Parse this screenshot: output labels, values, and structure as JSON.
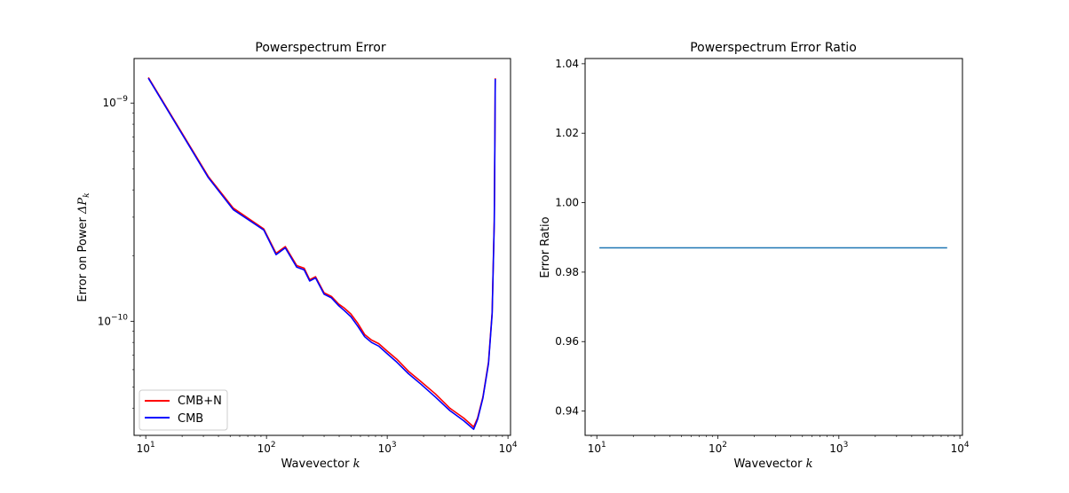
{
  "chart_data": [
    {
      "type": "line",
      "title": "Powerspectrum Error",
      "xlabel": "Wavevector",
      "xlabel_math": "k",
      "ylabel": "Error on Power",
      "ylabel_math": "ΔP",
      "ylabel_math_sub": "k",
      "xscale": "log",
      "yscale": "log",
      "xlim": [
        8,
        10500
      ],
      "ylim": [
        3e-11,
        1.6e-09
      ],
      "xticks": [
        {
          "value": 10,
          "base": "10",
          "exp": "1"
        },
        {
          "value": 100,
          "base": "10",
          "exp": "2"
        },
        {
          "value": 1000,
          "base": "10",
          "exp": "3"
        },
        {
          "value": 10000,
          "base": "10",
          "exp": "4"
        }
      ],
      "yticks": [
        {
          "value": 1e-10,
          "base": "10",
          "exp": "−10"
        },
        {
          "value": 1e-09,
          "base": "10",
          "exp": "−9"
        }
      ],
      "legend": "lower-left",
      "series": [
        {
          "name": "CMB+N",
          "color": "#ff0000",
          "x": [
            10.5,
            33,
            53,
            95,
            120,
            143,
            178,
            205,
            228,
            255,
            300,
            345,
            395,
            440,
            500,
            570,
            650,
            740,
            850,
            1000,
            1200,
            1500,
            1900,
            2500,
            3300,
            4300,
            5200,
            5600,
            6200,
            6900,
            7400,
            7700,
            7800,
            7850
          ],
          "y": [
            1.31e-09,
            4.6e-10,
            3.3e-10,
            2.65e-10,
            2.05e-10,
            2.2e-10,
            1.8e-10,
            1.75e-10,
            1.55e-10,
            1.6e-10,
            1.35e-10,
            1.3e-10,
            1.2e-10,
            1.15e-10,
            1.08e-10,
            9.8e-11,
            8.7e-11,
            8.2e-11,
            7.9e-11,
            7.3e-11,
            6.7e-11,
            5.9e-11,
            5.3e-11,
            4.65e-11,
            4e-11,
            3.6e-11,
            3.28e-11,
            3.6e-11,
            4.5e-11,
            6.5e-11,
            1.1e-10,
            2.9e-10,
            7e-10,
            1.3e-09
          ]
        },
        {
          "name": "CMB",
          "color": "#0000ff",
          "x": [
            10.5,
            33,
            53,
            95,
            120,
            143,
            178,
            205,
            228,
            255,
            300,
            345,
            395,
            440,
            500,
            570,
            650,
            740,
            850,
            1000,
            1200,
            1500,
            1900,
            2500,
            3300,
            4300,
            5200,
            5600,
            6200,
            6900,
            7400,
            7700,
            7800,
            7850
          ],
          "y": [
            1.3e-09,
            4.55e-10,
            3.25e-10,
            2.62e-10,
            2.02e-10,
            2.17e-10,
            1.77e-10,
            1.72e-10,
            1.53e-10,
            1.58e-10,
            1.33e-10,
            1.28e-10,
            1.18e-10,
            1.12e-10,
            1.05e-10,
            9.5e-11,
            8.5e-11,
            8e-11,
            7.7e-11,
            7.1e-11,
            6.5e-11,
            5.75e-11,
            5.15e-11,
            4.5e-11,
            3.9e-11,
            3.5e-11,
            3.2e-11,
            3.55e-11,
            4.45e-11,
            6.4e-11,
            1.08e-10,
            2.85e-10,
            6.9e-10,
            1.29e-09
          ]
        }
      ]
    },
    {
      "type": "line",
      "title": "Powerspectrum Error Ratio",
      "xlabel": "Wavevector",
      "xlabel_math": "k",
      "ylabel": "Error Ratio",
      "xscale": "log",
      "yscale": "linear",
      "xlim": [
        8,
        10500
      ],
      "ylim": [
        0.933,
        1.0415
      ],
      "xticks": [
        {
          "value": 10,
          "base": "10",
          "exp": "1"
        },
        {
          "value": 100,
          "base": "10",
          "exp": "2"
        },
        {
          "value": 1000,
          "base": "10",
          "exp": "3"
        },
        {
          "value": 10000,
          "base": "10",
          "exp": "4"
        }
      ],
      "yticks": [
        {
          "value": 0.94,
          "label": "0.94"
        },
        {
          "value": 0.96,
          "label": "0.96"
        },
        {
          "value": 0.98,
          "label": "0.98"
        },
        {
          "value": 1.0,
          "label": "1.00"
        },
        {
          "value": 1.02,
          "label": "1.02"
        },
        {
          "value": 1.04,
          "label": "1.04"
        }
      ],
      "series": [
        {
          "color": "#1f77b4",
          "x": [
            10.5,
            7850
          ],
          "y": [
            0.987,
            0.987
          ]
        }
      ]
    }
  ]
}
